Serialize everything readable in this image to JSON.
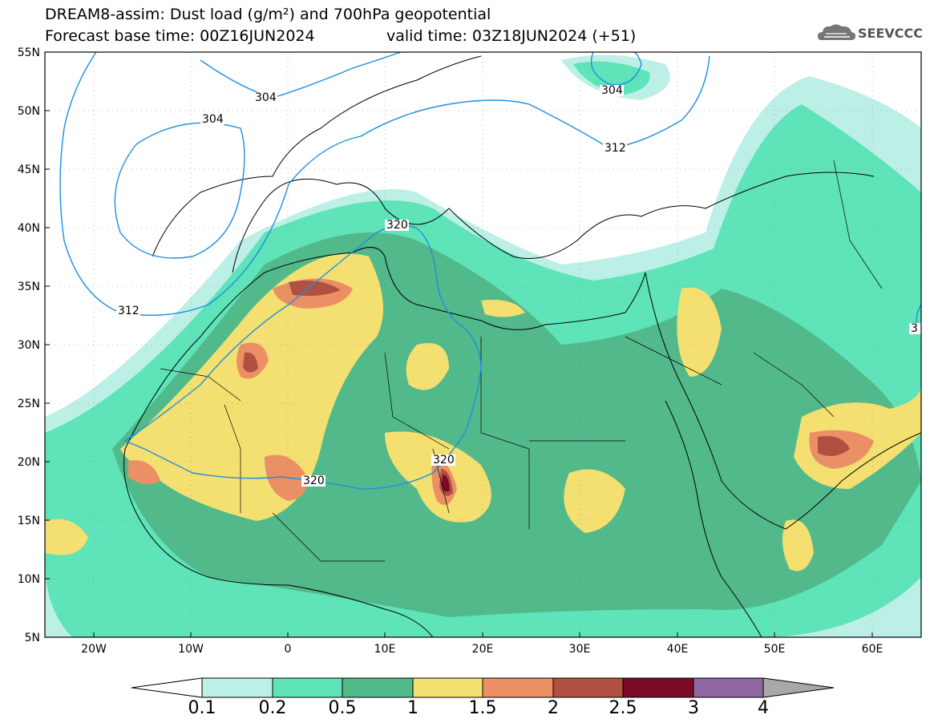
{
  "header": {
    "title_line1": "DREAM8-assim: Dust load (g/m²) and 700hPa geopotential",
    "title_line2": "Forecast base time: 00Z16JUN2024",
    "valid_time": "valid time: 03Z18JUN2024 (+51)",
    "logo_text": "SEEVCCC"
  },
  "map": {
    "region": {
      "lon_range": [
        -25,
        65
      ],
      "lat_range": [
        5,
        55
      ]
    },
    "lat_ticks": [
      "55N",
      "50N",
      "45N",
      "40N",
      "35N",
      "30N",
      "25N",
      "20N",
      "15N",
      "10N",
      "5N"
    ],
    "lon_ticks": [
      "20W",
      "10W",
      "0",
      "10E",
      "20E",
      "30E",
      "40E",
      "50E",
      "60E"
    ],
    "contour_labels": [
      "304",
      "304",
      "304",
      "312",
      "312",
      "320",
      "320",
      "320",
      "3"
    ]
  },
  "colorbar": {
    "labels": [
      "0.1",
      "0.2",
      "0.5",
      "1",
      "1.5",
      "2",
      "2.5",
      "3",
      "4"
    ],
    "colors": [
      "#bcefe6",
      "#5fe3b9",
      "#52b98a",
      "#f4e070",
      "#eb9065",
      "#b05040",
      "#7a0a28",
      "#8e66a0"
    ],
    "under_color": "#ffffff",
    "over_color": "#a8a8a8"
  },
  "colors": {
    "contour": "#1c8fe0",
    "coast": "#000000"
  }
}
